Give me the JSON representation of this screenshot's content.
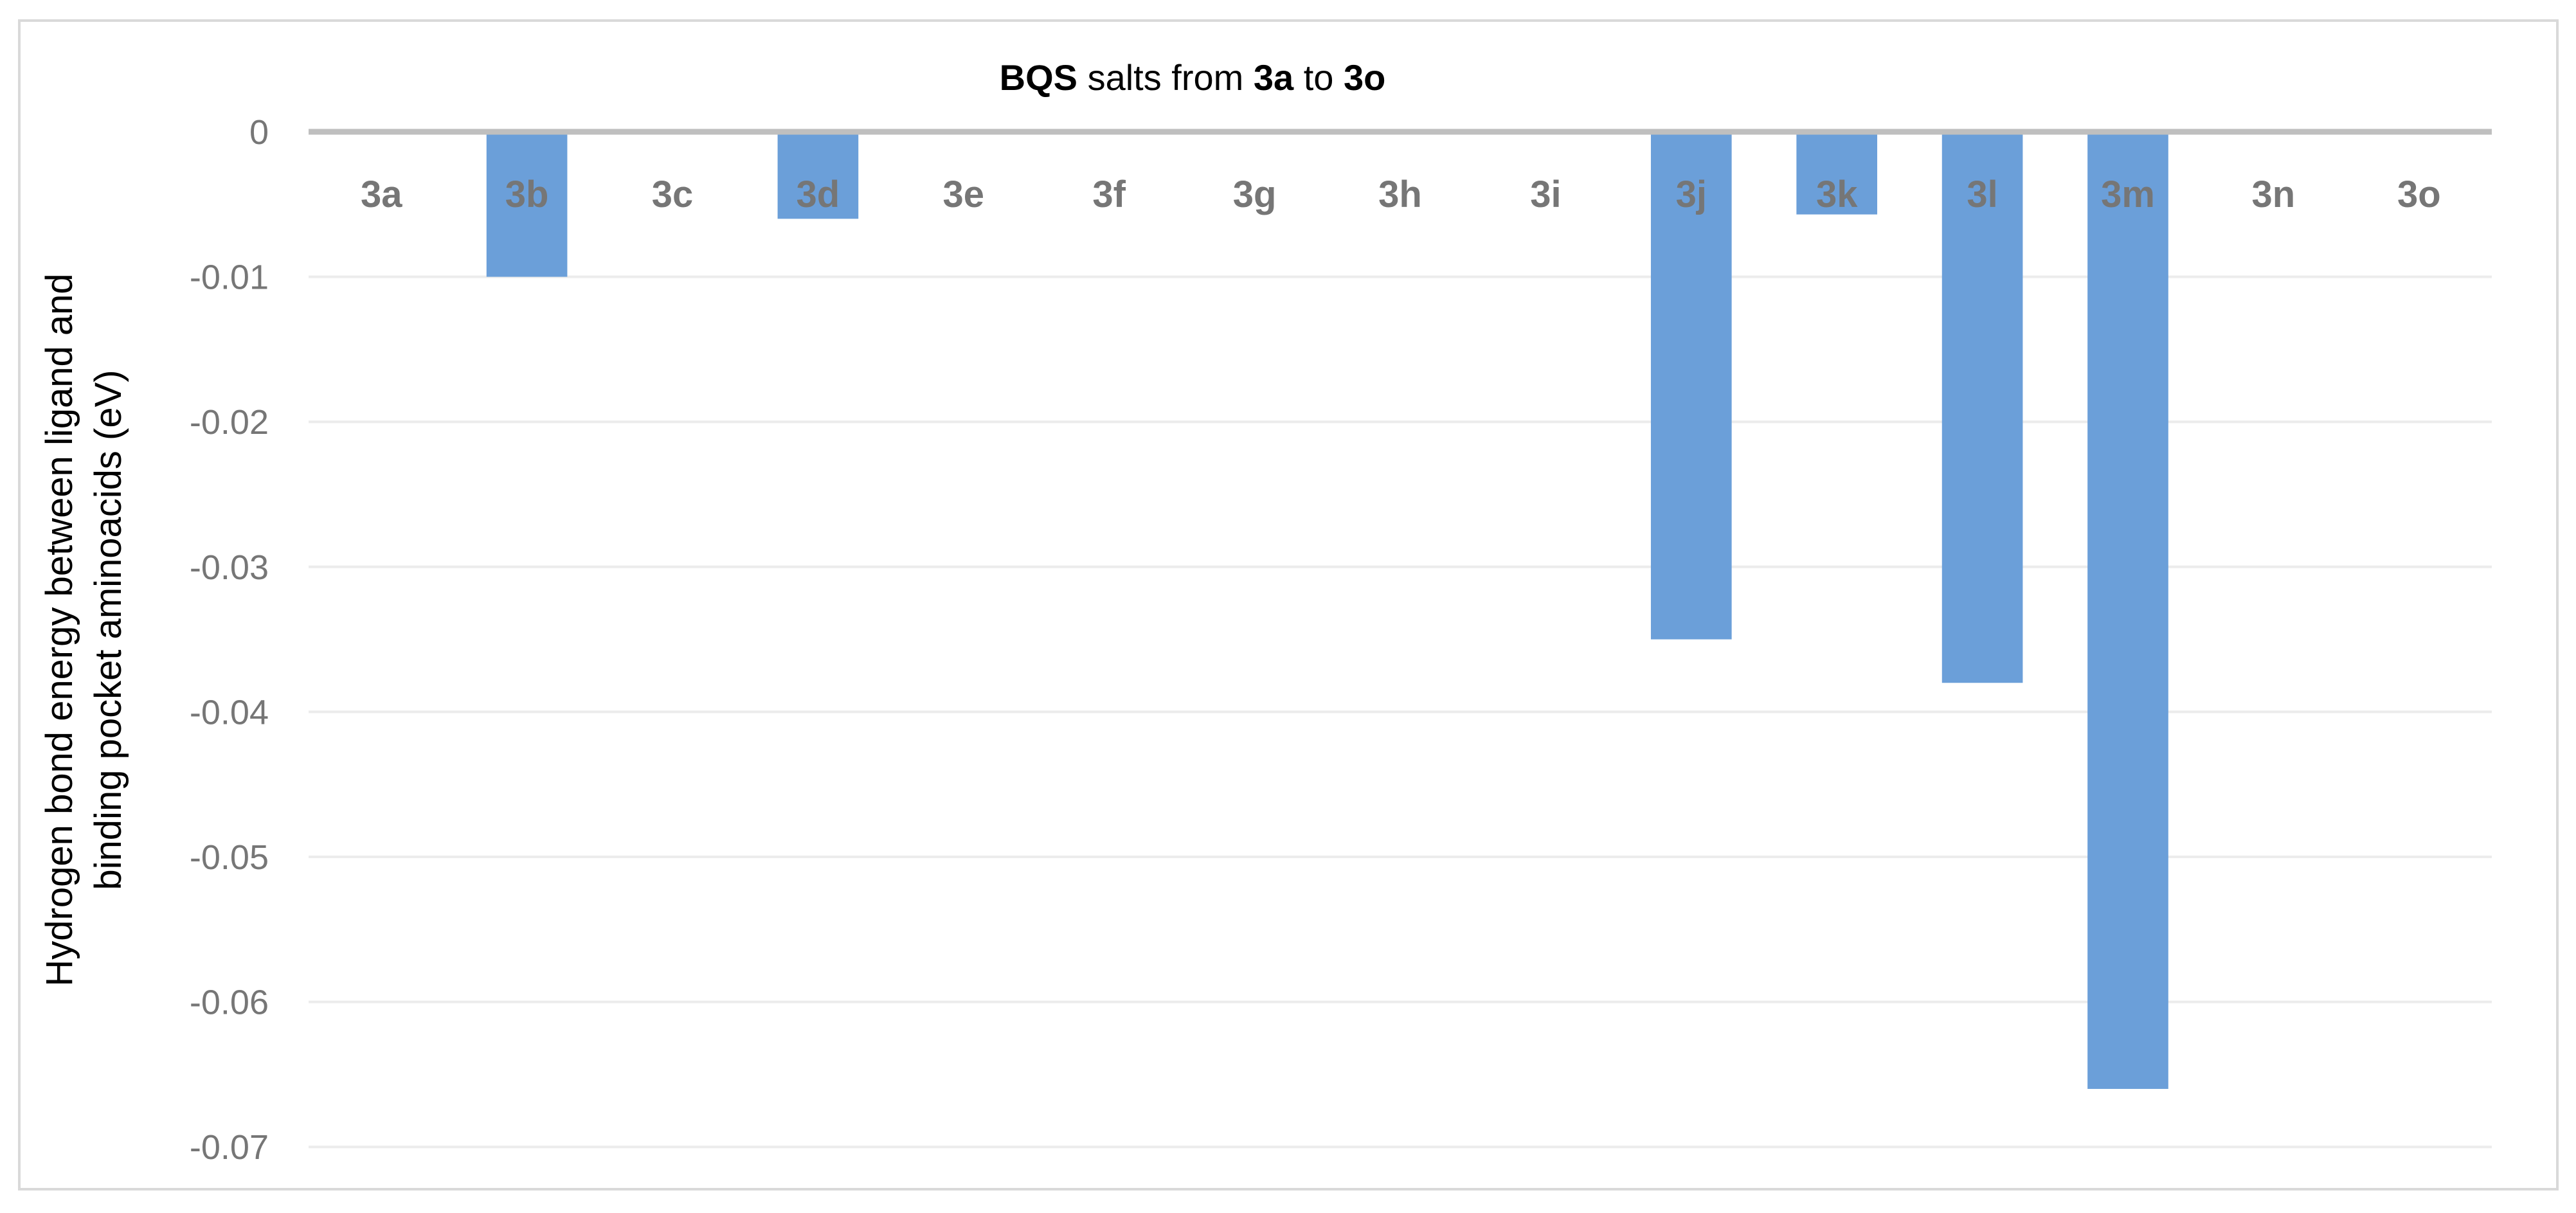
{
  "chart_data": {
    "type": "bar",
    "title": {
      "parts": [
        {
          "text": "BQS",
          "bold": true
        },
        {
          "text": " salts from ",
          "bold": false
        },
        {
          "text": "3a",
          "bold": true
        },
        {
          "text": " to ",
          "bold": false
        },
        {
          "text": "3o",
          "bold": true
        }
      ]
    },
    "xlabel": "",
    "ylabel": [
      "Hydrogen bond energy between ligand and",
      "binding pocket aminoacids (eV)"
    ],
    "categories": [
      "3a",
      "3b",
      "3c",
      "3d",
      "3e",
      "3f",
      "3g",
      "3h",
      "3i",
      "3j",
      "3k",
      "3l",
      "3m",
      "3n",
      "3o"
    ],
    "values": [
      0,
      -0.01,
      0,
      -0.006,
      0,
      0,
      0,
      0,
      0,
      -0.035,
      -0.0057,
      -0.038,
      -0.066,
      0,
      0
    ],
    "ylim": [
      -0.07,
      0
    ],
    "yticks": [
      0,
      -0.01,
      -0.02,
      -0.03,
      -0.04,
      -0.05,
      -0.06,
      -0.07
    ],
    "ytick_labels": [
      "0",
      "-0.01",
      "-0.02",
      "-0.03",
      "-0.04",
      "-0.05",
      "-0.06",
      "-0.07"
    ],
    "grid": true,
    "legend": "none",
    "colors": {
      "bar": "#6b9fd9",
      "zero_axis": "#bfbfbf",
      "grid": "#ececec",
      "tick_text": "#767676",
      "frame": "#d9d9d9"
    }
  }
}
